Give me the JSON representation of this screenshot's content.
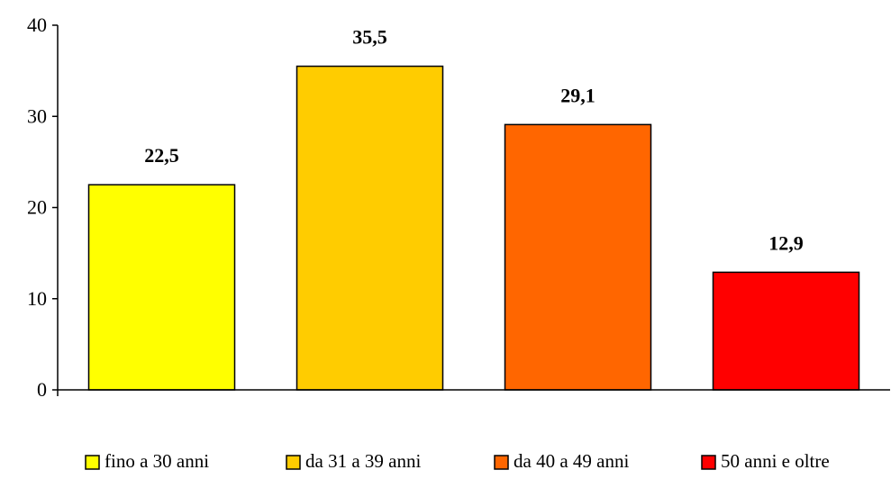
{
  "chart_data": {
    "type": "bar",
    "categories": [
      "fino a 30 anni",
      "da 31 a 39 anni",
      "da 40 a 49 anni",
      "50 anni e oltre"
    ],
    "values": [
      22.5,
      35.5,
      29.1,
      12.9
    ],
    "value_labels": [
      "22,5",
      "35,5",
      "29,1",
      "12,9"
    ],
    "colors": [
      "#FFFF00",
      "#FFCC00",
      "#FF6600",
      "#FF0000"
    ],
    "yticks": [
      0,
      10,
      20,
      30,
      40
    ],
    "ylim": [
      0,
      40
    ],
    "grid": false,
    "legend_position": "bottom"
  }
}
